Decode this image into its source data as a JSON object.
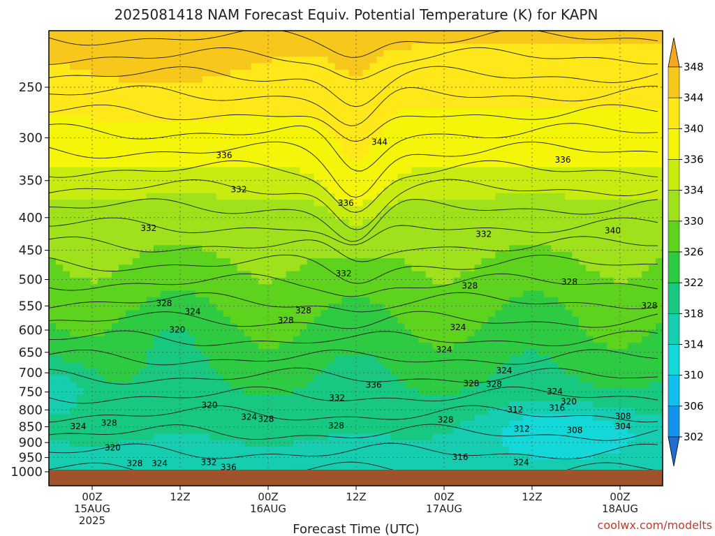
{
  "chart_data": {
    "type": "heatmap",
    "title": "2025081418 NAM Forecast Equiv. Potential Temperature (K) for KAPN",
    "xlabel": "Forecast Time (UTC)",
    "ylabel": "",
    "credit": "coolwx.com/modelts",
    "y_ticks": [
      250,
      300,
      350,
      400,
      450,
      500,
      550,
      600,
      650,
      700,
      750,
      800,
      850,
      900,
      950,
      1000
    ],
    "y_tick_labels": [
      "250",
      "300",
      "350",
      "400",
      "450",
      "500",
      "550",
      "600",
      "650",
      "700",
      "750",
      "800",
      "850",
      "900",
      "950",
      "1000"
    ],
    "y_range": [
      200,
      1000
    ],
    "y_scale": "log-pressure",
    "x_ticks": [
      {
        "hour": 6,
        "line1": "00Z",
        "line2": "15AUG",
        "line3": "2025"
      },
      {
        "hour": 18,
        "line1": "12Z",
        "line2": "",
        "line3": ""
      },
      {
        "hour": 30,
        "line1": "00Z",
        "line2": "16AUG",
        "line3": ""
      },
      {
        "hour": 42,
        "line1": "12Z",
        "line2": "",
        "line3": ""
      },
      {
        "hour": 54,
        "line1": "00Z",
        "line2": "17AUG",
        "line3": ""
      },
      {
        "hour": 66,
        "line1": "12Z",
        "line2": "",
        "line3": ""
      },
      {
        "hour": 78,
        "line1": "00Z",
        "line2": "18AUG",
        "line3": ""
      }
    ],
    "x_range": [
      0,
      84
    ],
    "grid": true,
    "colorbar": {
      "labels": [
        348,
        344,
        340,
        336,
        334,
        330,
        326,
        322,
        318,
        314,
        310,
        306,
        302
      ],
      "colors": [
        "#f5a623",
        "#f8c71c",
        "#ffe81a",
        "#f5f50a",
        "#c8ec10",
        "#9fe11a",
        "#5ed31e",
        "#2ecb42",
        "#18c780",
        "#17cdb0",
        "#14d7d7",
        "#10bfee",
        "#1493ec",
        "#1f6fd0"
      ]
    },
    "contour_labels": [
      {
        "text": "344",
        "hour": 45.2,
        "p": 305
      },
      {
        "text": "336",
        "hour": 24.0,
        "p": 320
      },
      {
        "text": "336",
        "hour": 40.6,
        "p": 380
      },
      {
        "text": "336",
        "hour": 70.2,
        "p": 325
      },
      {
        "text": "332",
        "hour": 26.0,
        "p": 362
      },
      {
        "text": "332",
        "hour": 13.7,
        "p": 416
      },
      {
        "text": "332",
        "hour": 59.4,
        "p": 425
      },
      {
        "text": "332",
        "hour": 40.3,
        "p": 490
      },
      {
        "text": "340",
        "hour": 77.0,
        "p": 420
      },
      {
        "text": "328",
        "hour": 15.8,
        "p": 545
      },
      {
        "text": "328",
        "hour": 32.4,
        "p": 580
      },
      {
        "text": "328",
        "hour": 34.8,
        "p": 560
      },
      {
        "text": "328",
        "hour": 57.5,
        "p": 512
      },
      {
        "text": "328",
        "hour": 71.1,
        "p": 505
      },
      {
        "text": "328",
        "hour": 82.0,
        "p": 550
      },
      {
        "text": "324",
        "hour": 19.7,
        "p": 562
      },
      {
        "text": "324",
        "hour": 55.9,
        "p": 595
      },
      {
        "text": "324",
        "hour": 54.0,
        "p": 645
      },
      {
        "text": "324",
        "hour": 62.2,
        "p": 695
      },
      {
        "text": "324",
        "hour": 69.1,
        "p": 750
      },
      {
        "text": "324",
        "hour": 4.1,
        "p": 850
      },
      {
        "text": "324",
        "hour": 27.4,
        "p": 822
      },
      {
        "text": "324",
        "hour": 15.2,
        "p": 972
      },
      {
        "text": "324",
        "hour": 64.5,
        "p": 968
      },
      {
        "text": "320",
        "hour": 17.6,
        "p": 600
      },
      {
        "text": "320",
        "hour": 22.0,
        "p": 787
      },
      {
        "text": "320",
        "hour": 71.0,
        "p": 778
      },
      {
        "text": "320",
        "hour": 8.8,
        "p": 918
      },
      {
        "text": "328",
        "hour": 8.3,
        "p": 840
      },
      {
        "text": "328",
        "hour": 29.7,
        "p": 828
      },
      {
        "text": "328",
        "hour": 39.3,
        "p": 848
      },
      {
        "text": "328",
        "hour": 54.2,
        "p": 830
      },
      {
        "text": "328",
        "hour": 57.7,
        "p": 728
      },
      {
        "text": "328",
        "hour": 60.8,
        "p": 730
      },
      {
        "text": "328",
        "hour": 11.8,
        "p": 972
      },
      {
        "text": "332",
        "hour": 39.4,
        "p": 767
      },
      {
        "text": "332",
        "hour": 21.9,
        "p": 968
      },
      {
        "text": "336",
        "hour": 44.4,
        "p": 732
      },
      {
        "text": "336",
        "hour": 24.6,
        "p": 985
      },
      {
        "text": "316",
        "hour": 69.4,
        "p": 795
      },
      {
        "text": "316",
        "hour": 56.2,
        "p": 950
      },
      {
        "text": "312",
        "hour": 63.7,
        "p": 800
      },
      {
        "text": "312",
        "hour": 64.6,
        "p": 858
      },
      {
        "text": "308",
        "hour": 71.8,
        "p": 862
      },
      {
        "text": "308",
        "hour": 78.4,
        "p": 820
      },
      {
        "text": "304",
        "hour": 78.4,
        "p": 850
      }
    ]
  }
}
